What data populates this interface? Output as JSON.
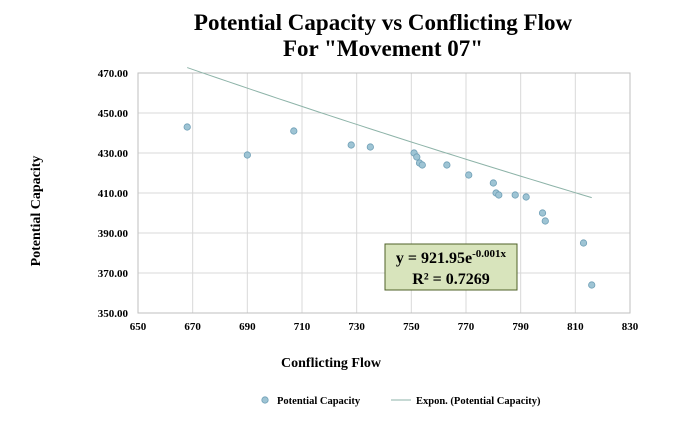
{
  "chart_data": {
    "type": "scatter",
    "title": [
      "Potential Capacity vs Conflicting Flow",
      "For \"Movement 07\""
    ],
    "xlabel": "Conflicting Flow",
    "ylabel": "Potential Capacity",
    "xlim": [
      650,
      830
    ],
    "ylim": [
      350,
      470
    ],
    "x_ticks": [
      "650",
      "670",
      "690",
      "710",
      "730",
      "750",
      "770",
      "790",
      "810",
      "830"
    ],
    "y_ticks": [
      "350.00",
      "370.00",
      "390.00",
      "410.00",
      "430.00",
      "450.00",
      "470.00"
    ],
    "grid": true,
    "series": [
      {
        "name": "Potential Capacity",
        "kind": "points",
        "color": "#9ec4d4",
        "stroke": "#6f9fb6",
        "x": [
          668,
          690,
          707,
          728,
          735,
          751,
          752,
          753,
          754,
          763,
          771,
          780,
          781,
          782,
          788,
          792,
          798,
          799,
          813,
          816
        ],
        "y": [
          443,
          429,
          441,
          434,
          433,
          430,
          428,
          425,
          424,
          424,
          419,
          415,
          410,
          409,
          409,
          408,
          400,
          396,
          385,
          364
        ]
      },
      {
        "name": "Expon. (Potential Capacity)",
        "kind": "trendline",
        "color": "#8db3a8",
        "a": 921.95,
        "b": -0.001,
        "x_range": [
          668,
          816
        ]
      }
    ],
    "legend": "bottom",
    "annotation": {
      "equation_prefix": "y = 921.95e",
      "equation_exponent": "-0.001x",
      "r_squared": "R² = 0.7269",
      "box_color": "#d8e4bc",
      "border_color": "#4f6228"
    }
  }
}
